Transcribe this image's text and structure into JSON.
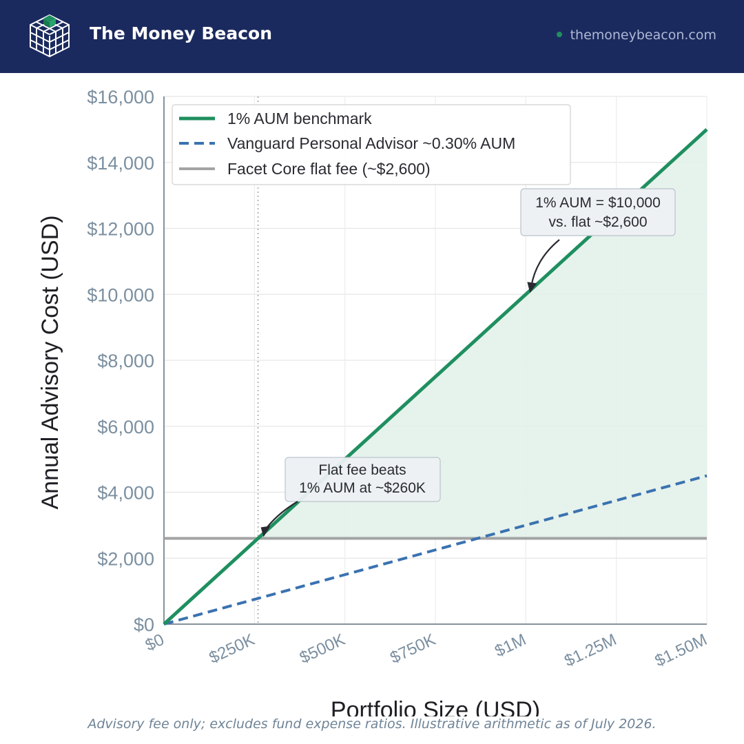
{
  "header": {
    "brand": "The Money Beacon",
    "site": "themoneybeacon.com",
    "logo_icon": "cube-grid-icon",
    "colors": {
      "background": "#1b2a5e",
      "accent": "#1f8f5f"
    }
  },
  "chart_data": {
    "type": "line",
    "xlabel": "Portfolio Size (USD)",
    "ylabel": "Annual Advisory Cost (USD)",
    "xlim": [
      0,
      1500000
    ],
    "ylim": [
      0,
      16000
    ],
    "x_ticks": [
      0,
      250000,
      500000,
      750000,
      1000000,
      1250000,
      1500000
    ],
    "x_tick_labels": [
      "$0",
      "$250K",
      "$500K",
      "$750K",
      "$1M",
      "$1.25M",
      "$1.50M"
    ],
    "y_ticks": [
      0,
      2000,
      4000,
      6000,
      8000,
      10000,
      12000,
      14000,
      16000
    ],
    "y_tick_labels": [
      "$0",
      "$2,000",
      "$4,000",
      "$6,000",
      "$8,000",
      "$10,000",
      "$12,000",
      "$14,000",
      "$16,000"
    ],
    "grid": true,
    "legend_position": "top-left",
    "series": [
      {
        "name": "1% AUM benchmark",
        "x": [
          0,
          1500000
        ],
        "y": [
          0,
          15000
        ],
        "color": "#1f8f5f",
        "style": "solid"
      },
      {
        "name": "Vanguard Personal Advisor ~0.30% AUM",
        "x": [
          0,
          1500000
        ],
        "y": [
          0,
          4500
        ],
        "color": "#3a72b0",
        "style": "dashed"
      },
      {
        "name": "Facet Core flat fee (~$2,600)",
        "x": [
          0,
          1500000
        ],
        "y": [
          2600,
          2600
        ],
        "color": "#a3a3a3",
        "style": "solid"
      }
    ],
    "shaded_region": {
      "between": [
        "1% AUM benchmark",
        "Facet Core flat fee (~$2,600)"
      ],
      "from_x": 260000,
      "color": "#e3f1ea"
    },
    "reference_line": {
      "x": 260000,
      "style": "dotted"
    },
    "annotations": [
      {
        "lines": [
          "1% AUM = $10,000",
          "vs. flat ~$2,600"
        ],
        "point": [
          1000000,
          10000
        ]
      },
      {
        "lines": [
          "Flat fee beats",
          "1% AUM at ~$260K"
        ],
        "point": [
          260000,
          2600
        ]
      }
    ]
  },
  "footnote": "Advisory fee only; excludes fund expense ratios. Illustrative arithmetic as of July 2026."
}
